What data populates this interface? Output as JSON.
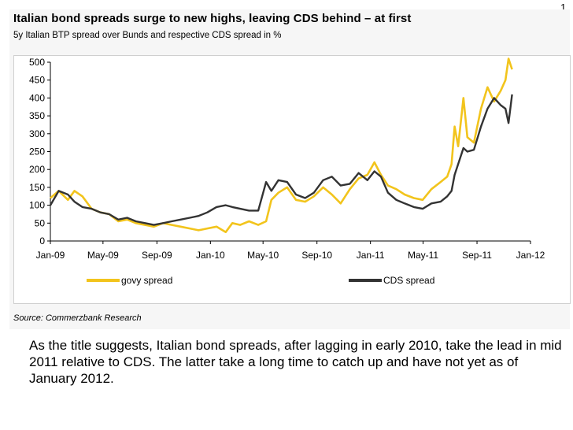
{
  "corner_mark": "1",
  "caption": "As the title suggests, Italian bond spreads, after lagging in early 2010, take the lead in mid 2011 relative to CDS.  The latter take a long time to catch up and have not yet as of January 2012.",
  "source": "Source: Commerzbank Research",
  "colors": {
    "govy": "#f2c41c",
    "cds": "#333333",
    "panel": "#f6f6f6"
  },
  "chart_data": {
    "type": "line",
    "title": "Italian bond spreads surge to new highs, leaving CDS behind – at first",
    "subtitle": "5y Italian BTP spread over Bunds and respective CDS spread in %",
    "xlabel": "",
    "ylabel": "",
    "ylim": [
      0,
      500
    ],
    "yticks": [
      0,
      50,
      100,
      150,
      200,
      250,
      300,
      350,
      400,
      450,
      500
    ],
    "x_tick_labels": [
      "Jan-09",
      "May-09",
      "Sep-09",
      "Jan-10",
      "May-10",
      "Sep-10",
      "Jan-11",
      "May-11",
      "Sep-11",
      "Jan-12"
    ],
    "x_tick_dates": [
      "2009-01",
      "2009-05",
      "2009-09",
      "2010-01",
      "2010-05",
      "2010-09",
      "2011-01",
      "2011-05",
      "2011-09",
      "2012-01"
    ],
    "xlim": [
      "2009-01",
      "2012-01"
    ],
    "grid": false,
    "legend_position": "bottom",
    "series": [
      {
        "name": "govy spread",
        "color": "#f2c41c",
        "points": [
          [
            "2009-01-01",
            120
          ],
          [
            "2009-01-20",
            140
          ],
          [
            "2009-02-10",
            115
          ],
          [
            "2009-02-25",
            140
          ],
          [
            "2009-03-15",
            125
          ],
          [
            "2009-04-05",
            90
          ],
          [
            "2009-04-25",
            80
          ],
          [
            "2009-05-15",
            75
          ],
          [
            "2009-06-05",
            55
          ],
          [
            "2009-06-25",
            60
          ],
          [
            "2009-07-15",
            50
          ],
          [
            "2009-08-05",
            45
          ],
          [
            "2009-08-25",
            40
          ],
          [
            "2009-09-15",
            50
          ],
          [
            "2009-10-05",
            45
          ],
          [
            "2009-10-25",
            40
          ],
          [
            "2009-11-15",
            35
          ],
          [
            "2009-12-05",
            30
          ],
          [
            "2009-12-25",
            35
          ],
          [
            "2010-01-15",
            40
          ],
          [
            "2010-02-05",
            25
          ],
          [
            "2010-02-20",
            50
          ],
          [
            "2010-03-10",
            45
          ],
          [
            "2010-03-30",
            55
          ],
          [
            "2010-04-20",
            45
          ],
          [
            "2010-05-08",
            55
          ],
          [
            "2010-05-20",
            115
          ],
          [
            "2010-06-05",
            135
          ],
          [
            "2010-06-25",
            150
          ],
          [
            "2010-07-15",
            115
          ],
          [
            "2010-08-05",
            110
          ],
          [
            "2010-08-25",
            125
          ],
          [
            "2010-09-15",
            150
          ],
          [
            "2010-10-05",
            130
          ],
          [
            "2010-10-25",
            105
          ],
          [
            "2010-11-15",
            145
          ],
          [
            "2010-12-05",
            175
          ],
          [
            "2010-12-25",
            185
          ],
          [
            "2011-01-10",
            220
          ],
          [
            "2011-01-25",
            185
          ],
          [
            "2011-02-10",
            155
          ],
          [
            "2011-03-01",
            145
          ],
          [
            "2011-03-20",
            130
          ],
          [
            "2011-04-10",
            120
          ],
          [
            "2011-04-30",
            115
          ],
          [
            "2011-05-20",
            145
          ],
          [
            "2011-06-10",
            165
          ],
          [
            "2011-06-25",
            180
          ],
          [
            "2011-07-05",
            215
          ],
          [
            "2011-07-12",
            320
          ],
          [
            "2011-07-20",
            265
          ],
          [
            "2011-08-01",
            400
          ],
          [
            "2011-08-10",
            290
          ],
          [
            "2011-08-25",
            275
          ],
          [
            "2011-09-10",
            370
          ],
          [
            "2011-09-25",
            430
          ],
          [
            "2011-10-10",
            390
          ],
          [
            "2011-10-25",
            420
          ],
          [
            "2011-11-05",
            450
          ],
          [
            "2011-11-12",
            510
          ],
          [
            "2011-11-20",
            480
          ]
        ]
      },
      {
        "name": "CDS spread",
        "color": "#333333",
        "points": [
          [
            "2009-01-01",
            100
          ],
          [
            "2009-01-20",
            140
          ],
          [
            "2009-02-10",
            130
          ],
          [
            "2009-02-25",
            110
          ],
          [
            "2009-03-15",
            95
          ],
          [
            "2009-04-05",
            90
          ],
          [
            "2009-04-25",
            80
          ],
          [
            "2009-05-15",
            75
          ],
          [
            "2009-06-05",
            60
          ],
          [
            "2009-06-25",
            65
          ],
          [
            "2009-07-15",
            55
          ],
          [
            "2009-08-05",
            50
          ],
          [
            "2009-08-25",
            45
          ],
          [
            "2009-09-15",
            50
          ],
          [
            "2009-10-05",
            55
          ],
          [
            "2009-10-25",
            60
          ],
          [
            "2009-11-15",
            65
          ],
          [
            "2009-12-05",
            70
          ],
          [
            "2009-12-25",
            80
          ],
          [
            "2010-01-15",
            95
          ],
          [
            "2010-02-05",
            100
          ],
          [
            "2010-02-20",
            95
          ],
          [
            "2010-03-10",
            90
          ],
          [
            "2010-03-30",
            85
          ],
          [
            "2010-04-20",
            85
          ],
          [
            "2010-05-08",
            165
          ],
          [
            "2010-05-20",
            140
          ],
          [
            "2010-06-05",
            170
          ],
          [
            "2010-06-25",
            165
          ],
          [
            "2010-07-15",
            130
          ],
          [
            "2010-08-05",
            120
          ],
          [
            "2010-08-25",
            135
          ],
          [
            "2010-09-15",
            170
          ],
          [
            "2010-10-05",
            180
          ],
          [
            "2010-10-25",
            155
          ],
          [
            "2010-11-15",
            160
          ],
          [
            "2010-12-05",
            190
          ],
          [
            "2010-12-25",
            170
          ],
          [
            "2011-01-10",
            195
          ],
          [
            "2011-01-25",
            180
          ],
          [
            "2011-02-10",
            135
          ],
          [
            "2011-03-01",
            115
          ],
          [
            "2011-03-20",
            105
          ],
          [
            "2011-04-10",
            95
          ],
          [
            "2011-04-30",
            90
          ],
          [
            "2011-05-20",
            105
          ],
          [
            "2011-06-10",
            110
          ],
          [
            "2011-06-25",
            125
          ],
          [
            "2011-07-05",
            140
          ],
          [
            "2011-07-12",
            185
          ],
          [
            "2011-07-20",
            215
          ],
          [
            "2011-08-01",
            260
          ],
          [
            "2011-08-10",
            250
          ],
          [
            "2011-08-25",
            255
          ],
          [
            "2011-09-10",
            320
          ],
          [
            "2011-09-25",
            370
          ],
          [
            "2011-10-10",
            400
          ],
          [
            "2011-10-25",
            380
          ],
          [
            "2011-11-05",
            370
          ],
          [
            "2011-11-12",
            330
          ],
          [
            "2011-11-20",
            410
          ]
        ]
      }
    ]
  }
}
